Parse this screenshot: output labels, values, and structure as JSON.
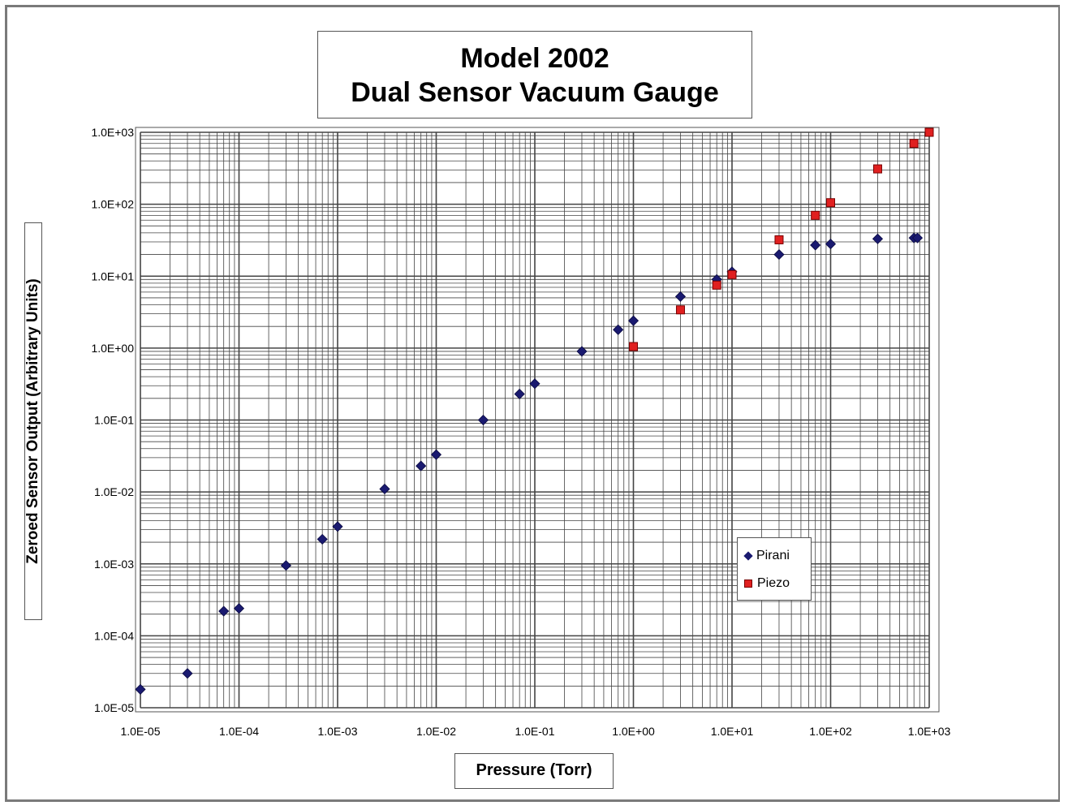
{
  "title_line1": "Model 2002",
  "title_line2": "Dual Sensor Vacuum Gauge",
  "legend": {
    "series1": "Pirani",
    "series2": "Piezo"
  },
  "colors": {
    "pirani": "#1a1a70",
    "piezo": "#e02020",
    "grid": "#444444"
  },
  "chart_data": {
    "type": "scatter",
    "xlabel": "Pressure (Torr)",
    "ylabel": "Zeroed Sensor Output (Arbitrary Units)",
    "xscale": "log",
    "yscale": "log",
    "xlim": [
      1e-05,
      1000
    ],
    "ylim": [
      1e-05,
      1000
    ],
    "grid": true,
    "legend_position": "lower-right",
    "x_tick_labels": [
      "1.0E-05",
      "1.0E-04",
      "1.0E-03",
      "1.0E-02",
      "1.0E-01",
      "1.0E+00",
      "1.0E+01",
      "1.0E+02",
      "1.0E+03"
    ],
    "y_tick_labels": [
      "1.0E-05",
      "1.0E-04",
      "1.0E-03",
      "1.0E-02",
      "1.0E-01",
      "1.0E+00",
      "1.0E+01",
      "1.0E+02",
      "1.0E+03"
    ],
    "series": [
      {
        "name": "Pirani",
        "marker": "diamond",
        "x": [
          1e-05,
          3e-05,
          7e-05,
          0.0001,
          0.0003,
          0.0007,
          0.001,
          0.003,
          0.007,
          0.01,
          0.03,
          0.07,
          0.1,
          0.3,
          0.7,
          1,
          3,
          7,
          10,
          30,
          70,
          100,
          300,
          700,
          760
        ],
        "y": [
          1.8e-05,
          3e-05,
          0.00022,
          0.00024,
          0.00095,
          0.0022,
          0.0033,
          0.011,
          0.023,
          0.033,
          0.1,
          0.23,
          0.32,
          0.9,
          1.8,
          2.4,
          5.2,
          9,
          11.5,
          20,
          27,
          28,
          33,
          34,
          34
        ]
      },
      {
        "name": "Piezo",
        "marker": "square",
        "x": [
          1,
          3,
          7,
          10,
          30,
          70,
          100,
          300,
          700,
          1000
        ],
        "y": [
          1.05,
          3.4,
          7.5,
          10.5,
          32,
          70,
          105,
          310,
          700,
          1000
        ]
      }
    ]
  }
}
